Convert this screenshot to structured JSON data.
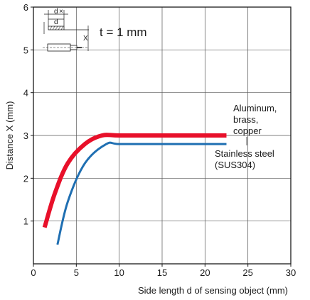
{
  "chart_data": {
    "type": "line",
    "xlabel": "Side length d of sensing object (mm)",
    "ylabel": "Distance X (mm)",
    "xlim": [
      0,
      30
    ],
    "ylim": [
      0,
      6
    ],
    "x_ticks": [
      "0",
      "5",
      "10",
      "15",
      "20",
      "25",
      "30"
    ],
    "y_ticks": [
      "1",
      "2",
      "3",
      "4",
      "5",
      "6"
    ],
    "grid": true,
    "series": [
      {
        "name": "Aluminum, brass, copper",
        "label_lines": [
          "Aluminum,",
          "brass,",
          "copper"
        ],
        "color": "#e8102a",
        "points": [
          [
            1.3,
            0.85
          ],
          [
            2.5,
            1.65
          ],
          [
            4,
            2.35
          ],
          [
            6,
            2.8
          ],
          [
            8,
            3.0
          ],
          [
            10,
            3.0
          ],
          [
            15,
            3.0
          ],
          [
            22.5,
            3.0
          ]
        ]
      },
      {
        "name": "Stainless steel (SUS304)",
        "label_lines": [
          "Stainless steel",
          "(SUS304)"
        ],
        "color": "#1f6fb2",
        "points": [
          [
            2.8,
            0.45
          ],
          [
            4,
            1.45
          ],
          [
            6,
            2.35
          ],
          [
            8.5,
            2.8
          ],
          [
            10,
            2.8
          ],
          [
            15,
            2.8
          ],
          [
            22.5,
            2.8
          ]
        ]
      }
    ],
    "inset": {
      "thickness_label": "t = 1 mm",
      "dim_d1": "d",
      "dim_d2": "d",
      "dim_x": "X"
    }
  }
}
